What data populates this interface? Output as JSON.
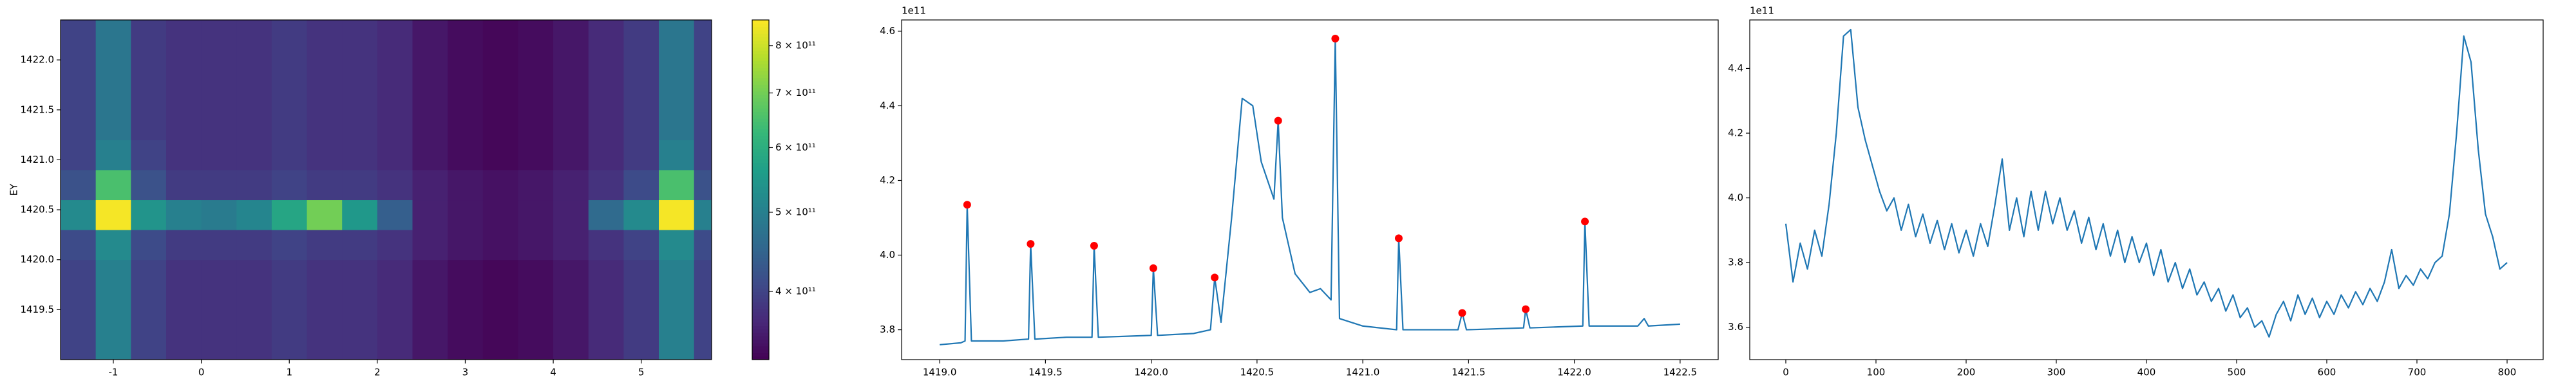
{
  "chart_data": [
    {
      "type": "heatmap",
      "ylabel": "EY",
      "colormap": "viridis",
      "x": [
        -1.4,
        -1.0,
        -0.6,
        -0.2,
        0.2,
        0.6,
        1.0,
        1.4,
        1.8,
        2.2,
        2.6,
        3.0,
        3.4,
        3.8,
        4.2,
        4.6,
        5.0,
        5.4,
        5.8
      ],
      "y_bins": [
        1419.0,
        1420.0,
        1420.3,
        1420.6,
        1420.9,
        1421.2,
        1422.4
      ],
      "z": [
        [
          400000000000.0,
          500000000000.0,
          400000000000.0,
          380000000000.0,
          380000000000.0,
          380000000000.0,
          390000000000.0,
          380000000000.0,
          380000000000.0,
          370000000000.0,
          350000000000.0,
          340000000000.0,
          335000000000.0,
          340000000000.0,
          350000000000.0,
          370000000000.0,
          390000000000.0,
          500000000000.0,
          400000000000.0
        ],
        [
          410000000000.0,
          520000000000.0,
          410000000000.0,
          390000000000.0,
          390000000000.0,
          390000000000.0,
          400000000000.0,
          390000000000.0,
          390000000000.0,
          380000000000.0,
          360000000000.0,
          350000000000.0,
          345000000000.0,
          350000000000.0,
          360000000000.0,
          380000000000.0,
          400000000000.0,
          520000000000.0,
          410000000000.0
        ],
        [
          520000000000.0,
          850000000000.0,
          540000000000.0,
          500000000000.0,
          490000000000.0,
          510000000000.0,
          580000000000.0,
          700000000000.0,
          550000000000.0,
          440000000000.0,
          360000000000.0,
          350000000000.0,
          345000000000.0,
          350000000000.0,
          360000000000.0,
          460000000000.0,
          520000000000.0,
          850000000000.0,
          500000000000.0
        ],
        [
          420000000000.0,
          650000000000.0,
          420000000000.0,
          390000000000.0,
          390000000000.0,
          390000000000.0,
          400000000000.0,
          390000000000.0,
          390000000000.0,
          380000000000.0,
          360000000000.0,
          350000000000.0,
          345000000000.0,
          350000000000.0,
          360000000000.0,
          380000000000.0,
          410000000000.0,
          650000000000.0,
          420000000000.0
        ],
        [
          400000000000.0,
          500000000000.0,
          400000000000.0,
          380000000000.0,
          380000000000.0,
          380000000000.0,
          390000000000.0,
          380000000000.0,
          380000000000.0,
          370000000000.0,
          350000000000.0,
          340000000000.0,
          335000000000.0,
          340000000000.0,
          350000000000.0,
          370000000000.0,
          390000000000.0,
          500000000000.0,
          400000000000.0
        ],
        [
          400000000000.0,
          480000000000.0,
          390000000000.0,
          380000000000.0,
          380000000000.0,
          380000000000.0,
          390000000000.0,
          380000000000.0,
          380000000000.0,
          370000000000.0,
          350000000000.0,
          340000000000.0,
          335000000000.0,
          340000000000.0,
          350000000000.0,
          370000000000.0,
          390000000000.0,
          480000000000.0,
          400000000000.0
        ]
      ],
      "xlim": [
        -1.6,
        5.8
      ],
      "ylim": [
        1419.0,
        1422.4
      ],
      "xticks": [
        -1,
        0,
        1,
        2,
        3,
        4,
        5
      ],
      "yticks": [
        1419.5,
        {
          "value": 1420.0,
          "label": "1420.0"
        },
        1420.5,
        {
          "value": 1421.0,
          "label": "1421.0"
        },
        1421.5,
        {
          "value": 1422.0,
          "label": "1422.0"
        }
      ],
      "colorbar": {
        "log": true,
        "zlim": [
          330000000000.0,
          860000000000.0
        ],
        "zticks": [
          {
            "value": 400000000000.0,
            "label": "4 × 10¹¹"
          },
          {
            "value": 500000000000.0,
            "label": "5 × 10¹¹"
          },
          {
            "value": 600000000000.0,
            "label": "6 × 10¹¹"
          },
          {
            "value": 700000000000.0,
            "label": "7 × 10¹¹"
          },
          {
            "value": 800000000000.0,
            "label": "8 × 10¹¹"
          }
        ]
      }
    },
    {
      "type": "line",
      "offset_label": "1e11",
      "series": [
        {
          "style": "line",
          "color": "#1f77b4",
          "x": [
            1419.0,
            1419.1,
            1419.12,
            1419.13,
            1419.15,
            1419.3,
            1419.42,
            1419.43,
            1419.45,
            1419.6,
            1419.72,
            1419.73,
            1419.75,
            1420.0,
            1420.01,
            1420.03,
            1420.2,
            1420.28,
            1420.3,
            1420.33,
            1420.38,
            1420.43,
            1420.48,
            1420.52,
            1420.58,
            1420.6,
            1420.62,
            1420.68,
            1420.75,
            1420.8,
            1420.85,
            1420.87,
            1420.89,
            1421.0,
            1421.16,
            1421.17,
            1421.19,
            1421.45,
            1421.47,
            1421.49,
            1421.76,
            1421.77,
            1421.79,
            1422.04,
            1422.05,
            1422.07,
            1422.3,
            1422.33,
            1422.35,
            1422.5
          ],
          "values": [
            3.76,
            3.765,
            3.77,
            4.135,
            3.77,
            3.77,
            3.775,
            4.03,
            3.775,
            3.78,
            3.78,
            4.025,
            3.78,
            3.785,
            3.965,
            3.785,
            3.79,
            3.8,
            3.94,
            3.82,
            4.1,
            4.42,
            4.4,
            4.25,
            4.15,
            4.36,
            4.1,
            3.95,
            3.9,
            3.91,
            3.88,
            4.58,
            3.83,
            3.81,
            3.8,
            4.045,
            3.8,
            3.8,
            3.845,
            3.8,
            3.805,
            3.855,
            3.805,
            3.81,
            4.09,
            3.81,
            3.81,
            3.83,
            3.81,
            3.815
          ]
        },
        {
          "style": "points",
          "color": "#ff0000",
          "x": [
            1419.13,
            1419.43,
            1419.73,
            1420.01,
            1420.3,
            1420.6,
            1420.87,
            1421.17,
            1421.47,
            1421.77,
            1422.05
          ],
          "values": [
            4.135,
            4.03,
            4.025,
            3.965,
            3.94,
            4.36,
            4.58,
            4.045,
            3.845,
            3.855,
            4.09
          ]
        }
      ],
      "xlim": [
        1418.82,
        1422.68
      ],
      "ylim": [
        3.72,
        4.63
      ],
      "xticks": [
        {
          "value": 1419.0,
          "label": "1419.0"
        },
        1419.5,
        {
          "value": 1420.0,
          "label": "1420.0"
        },
        1420.5,
        {
          "value": 1421.0,
          "label": "1421.0"
        },
        1421.5,
        {
          "value": 1422.0,
          "label": "1422.0"
        },
        1422.5
      ],
      "yticks": [
        3.8,
        {
          "value": 4.0,
          "label": "4.0"
        },
        4.2,
        4.4,
        4.6
      ]
    },
    {
      "type": "line",
      "offset_label": "1e11",
      "x": [
        0,
        8,
        16,
        24,
        32,
        40,
        48,
        56,
        64,
        72,
        80,
        88,
        96,
        104,
        112,
        120,
        128,
        136,
        144,
        152,
        160,
        168,
        176,
        184,
        192,
        200,
        208,
        216,
        224,
        232,
        240,
        248,
        256,
        264,
        272,
        280,
        288,
        296,
        304,
        312,
        320,
        328,
        336,
        344,
        352,
        360,
        368,
        376,
        384,
        392,
        400,
        408,
        416,
        424,
        432,
        440,
        448,
        456,
        464,
        472,
        480,
        488,
        496,
        504,
        512,
        520,
        528,
        536,
        544,
        552,
        560,
        568,
        576,
        584,
        592,
        600,
        608,
        616,
        624,
        632,
        640,
        648,
        656,
        664,
        672,
        680,
        688,
        696,
        704,
        712,
        720,
        728,
        736,
        744,
        752,
        760,
        768,
        776,
        784,
        792,
        800
      ],
      "series": [
        {
          "style": "line",
          "color": "#1f77b4",
          "values": [
            3.92,
            3.74,
            3.86,
            3.78,
            3.9,
            3.82,
            3.98,
            4.2,
            4.5,
            4.52,
            4.28,
            4.18,
            4.1,
            4.02,
            3.96,
            4.0,
            3.9,
            3.98,
            3.88,
            3.95,
            3.86,
            3.93,
            3.84,
            3.92,
            3.83,
            3.9,
            3.82,
            3.92,
            3.85,
            3.98,
            4.12,
            3.9,
            4.0,
            3.88,
            4.02,
            3.9,
            4.02,
            3.92,
            4.0,
            3.9,
            3.96,
            3.86,
            3.94,
            3.84,
            3.92,
            3.82,
            3.9,
            3.8,
            3.88,
            3.8,
            3.86,
            3.76,
            3.84,
            3.74,
            3.8,
            3.72,
            3.78,
            3.7,
            3.74,
            3.68,
            3.72,
            3.65,
            3.7,
            3.63,
            3.66,
            3.6,
            3.62,
            3.57,
            3.64,
            3.68,
            3.62,
            3.7,
            3.64,
            3.69,
            3.63,
            3.68,
            3.64,
            3.7,
            3.66,
            3.71,
            3.67,
            3.72,
            3.68,
            3.74,
            3.84,
            3.72,
            3.76,
            3.73,
            3.78,
            3.75,
            3.8,
            3.82,
            3.95,
            4.2,
            4.5,
            4.42,
            4.15,
            3.95,
            3.88,
            3.78,
            3.8
          ]
        }
      ],
      "xlim": [
        -40,
        840
      ],
      "ylim": [
        3.5,
        4.55
      ],
      "xticks": [
        0,
        100,
        200,
        300,
        400,
        500,
        600,
        700,
        800
      ],
      "yticks": [
        3.6,
        3.8,
        {
          "value": 4.0,
          "label": "4.0"
        },
        4.2,
        4.4
      ]
    }
  ]
}
